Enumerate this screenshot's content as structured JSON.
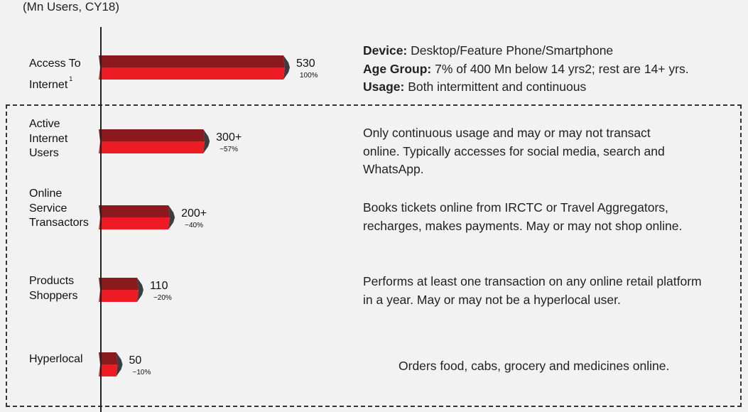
{
  "unit_note": "(Mn Users, CY18)",
  "chart_data": {
    "type": "bar",
    "orientation": "horizontal",
    "categories": [
      "Access To Internet",
      "Active Internet Users",
      "Online Service Transactors",
      "Products Shoppers",
      "Hyperlocal"
    ],
    "values": [
      530,
      300,
      200,
      110,
      50
    ],
    "value_labels": [
      "530",
      "300+",
      "200+",
      "110",
      "50"
    ],
    "share_labels": [
      "100%",
      "~57%",
      "~40%",
      "~20%",
      "~10%"
    ],
    "footnote_marker": "1",
    "colors": {
      "front": "#ed1c24",
      "top": "#8b1a1f",
      "side": "#3a3d42"
    }
  },
  "labels": {
    "access": "Access To\nInternet",
    "active": "Active\nInternet\nUsers",
    "transactors": "Online\nService\nTransactors",
    "shoppers": "Products\nShoppers",
    "hyperlocal": "Hyperlocal"
  },
  "descriptions": {
    "access": {
      "device_label": "Device:",
      "device_text": " Desktop/Feature Phone/Smartphone",
      "age_label": "Age Group:",
      "age_text": " 7% of 400 Mn below 14 yrs2; rest are 14+ yrs.",
      "usage_label": "Usage:",
      "usage_text": " Both intermittent and continuous"
    },
    "active": "Only continuous usage and may or may not transact online. Typically accesses for social media, search and WhatsApp.",
    "transactors": "Books tickets online from IRCTC or Travel Aggregators, recharges, makes payments. May or may not shop online.",
    "shoppers": "Performs at least one transaction on any online retail platform in a year. May or may not be a hyperlocal user.",
    "hyperlocal": "Orders food, cabs, grocery and medicines online."
  }
}
